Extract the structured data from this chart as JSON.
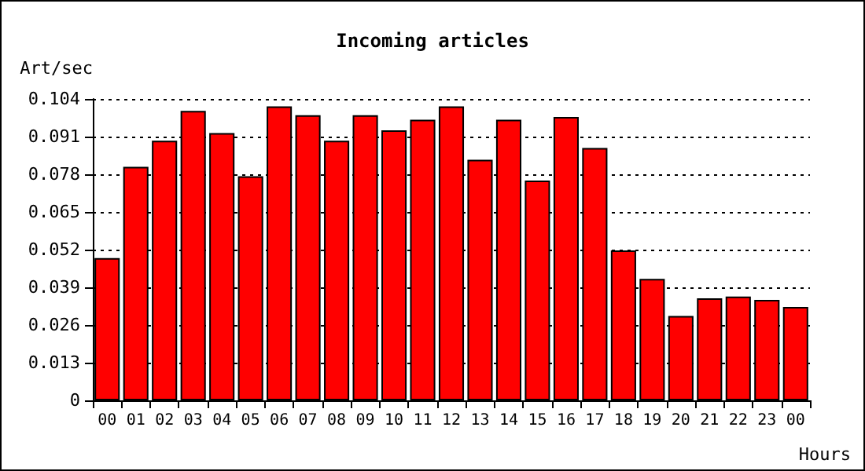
{
  "chart_data": {
    "type": "bar",
    "title": "Incoming articles",
    "ylabel": "Art/sec",
    "xlabel": "Hours",
    "categories": [
      "00",
      "01",
      "02",
      "03",
      "04",
      "05",
      "06",
      "07",
      "08",
      "09",
      "10",
      "11",
      "12",
      "13",
      "14",
      "15",
      "16",
      "17",
      "18",
      "19",
      "20",
      "21",
      "22",
      "23",
      "00"
    ],
    "series": [
      {
        "color": "#ff0000",
        "values": [
          0.0491,
          0.0806,
          0.0896,
          0.0999,
          0.0922,
          0.0773,
          0.1014,
          0.0984,
          0.0896,
          0.0984,
          0.0932,
          0.0968,
          0.1014,
          0.083,
          0.0968,
          0.0758,
          0.0978,
          0.0871,
          0.0517,
          0.0419,
          0.0291,
          0.0352,
          0.0358,
          0.0347,
          0.0322
        ]
      }
    ],
    "ylim": [
      0,
      0.104
    ],
    "yticks": [
      0,
      0.013,
      0.026,
      0.039,
      0.052,
      0.065,
      0.078,
      0.091,
      0.104
    ],
    "grid": "y"
  }
}
